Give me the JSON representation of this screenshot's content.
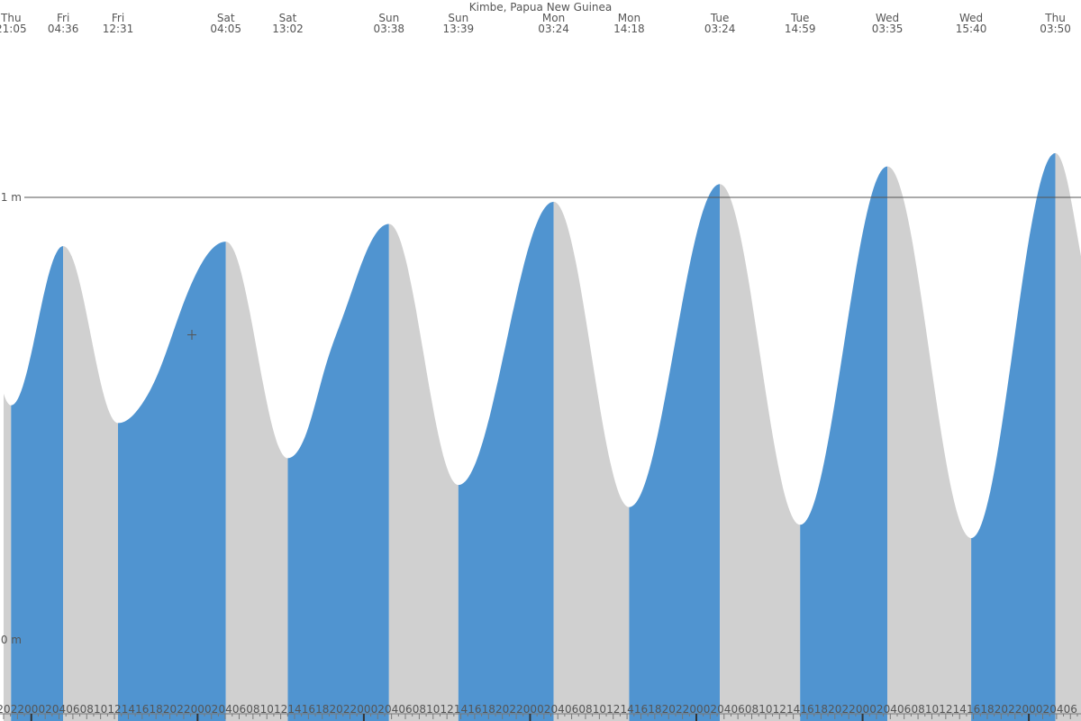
{
  "chart_data": {
    "type": "area",
    "title": "Kimbe, Papua New Guinea",
    "xlabel": "",
    "ylabel": "",
    "y_unit": "m",
    "y_ticks": [
      {
        "value": 1,
        "label": "1 m"
      },
      {
        "value": 0,
        "label": "0 m"
      }
    ],
    "ylim": [
      -0.16,
      1.45
    ],
    "x_unit": "hours from Thu 20:00",
    "xlim": [
      0,
      156
    ],
    "reference_line": 1,
    "rising_color": "#5094d0",
    "falling_color": "#d0d0d0",
    "extremes": [
      {
        "day": "Thu",
        "time": "21:05",
        "type": "low",
        "value": 0.53,
        "t": 1.08
      },
      {
        "day": "Fri",
        "time": "04:36",
        "type": "high",
        "value": 0.89,
        "t": 8.6
      },
      {
        "day": "Fri",
        "time": "12:31",
        "type": "low",
        "value": 0.49,
        "t": 16.52
      },
      {
        "day": "Sat",
        "time": "04:05",
        "type": "high",
        "value": 0.9,
        "t": 32.08
      },
      {
        "day": "Sat",
        "time": "13:02",
        "type": "low",
        "value": 0.41,
        "t": 41.03
      },
      {
        "day": "Sun",
        "time": "03:38",
        "type": "high",
        "value": 0.94,
        "t": 55.63
      },
      {
        "day": "Sun",
        "time": "13:39",
        "type": "low",
        "value": 0.35,
        "t": 65.65
      },
      {
        "day": "Mon",
        "time": "03:24",
        "type": "high",
        "value": 0.99,
        "t": 79.4
      },
      {
        "day": "Mon",
        "time": "14:18",
        "type": "low",
        "value": 0.3,
        "t": 90.3
      },
      {
        "day": "Tue",
        "time": "03:24",
        "type": "high",
        "value": 1.03,
        "t": 103.4
      },
      {
        "day": "Tue",
        "time": "14:59",
        "type": "low",
        "value": 0.26,
        "t": 114.98
      },
      {
        "day": "Wed",
        "time": "03:35",
        "type": "high",
        "value": 1.07,
        "t": 127.58
      },
      {
        "day": "Wed",
        "time": "15:40",
        "type": "low",
        "value": 0.23,
        "t": 139.67
      },
      {
        "day": "Thu",
        "time": "03:50",
        "type": "high",
        "value": 1.1,
        "t": 151.83
      }
    ],
    "curve_edges": {
      "start": {
        "t": 0,
        "value": 0.56
      },
      "end": {
        "t": 156,
        "value": 0.99
      }
    },
    "shoulders": [
      {
        "t": 22.5,
        "value": 0.61
      },
      {
        "t": 46.5,
        "value": 0.62
      }
    ],
    "hour_labels": [
      "20",
      "22",
      "00",
      "02",
      "04",
      "06",
      "08",
      "10",
      "12",
      "14",
      "16",
      "18",
      "20",
      "22",
      "00",
      "02",
      "04",
      "06",
      "08",
      "10",
      "12",
      "14",
      "16",
      "18",
      "20",
      "22",
      "00",
      "02",
      "04",
      "06",
      "08",
      "10",
      "12",
      "14",
      "16",
      "18",
      "20",
      "22",
      "00",
      "02",
      "04",
      "06",
      "08",
      "10",
      "12",
      "14",
      "16",
      "18",
      "20",
      "22",
      "00",
      "02",
      "04",
      "06",
      "08",
      "10",
      "12",
      "14",
      "16",
      "18",
      "20",
      "22",
      "00",
      "02",
      "04",
      "06",
      "08",
      "10",
      "12",
      "14",
      "16",
      "18",
      "20",
      "22",
      "00",
      "02",
      "04",
      "06"
    ]
  }
}
